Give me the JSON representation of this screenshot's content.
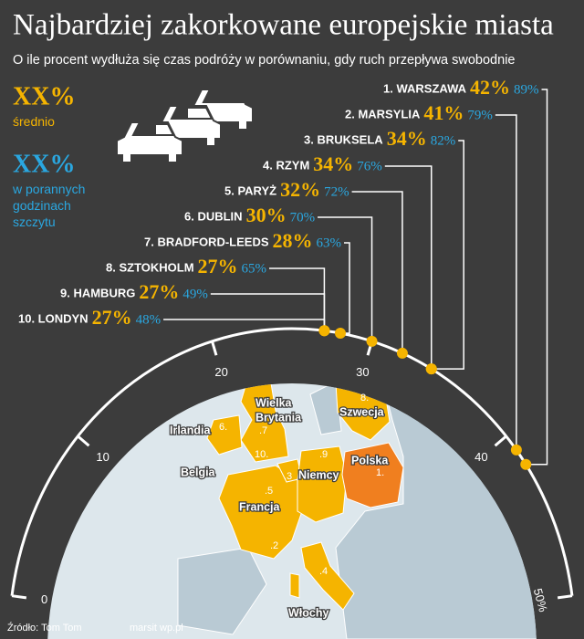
{
  "chart_data": {
    "type": "gauge",
    "title": "Najbardziej zakorkowane europejskie miasta",
    "subtitle": "O ile procent wydłuża się czas podróży w porównaniu, gdy ruch przepływa swobodnie",
    "categories": [
      "1. WARSZAWA",
      "2. MARSYLIA",
      "3. BRUKSELA",
      "4. RZYM",
      "5. PARYŻ",
      "6. DUBLIN",
      "7. BRADFORD-LEEDS",
      "8. SZTOKHOLM",
      "9. HAMBURG",
      "10. LONDYN"
    ],
    "series": [
      {
        "name": "średnio",
        "color": "#f5b400",
        "values": [
          42,
          41,
          34,
          34,
          32,
          30,
          28,
          27,
          27,
          27
        ],
        "value_labels": [
          "42%",
          "41%",
          "34%",
          "34%",
          "32%",
          "30%",
          "28%",
          "27%",
          "27%",
          "27%"
        ]
      },
      {
        "name": "w porannych godzinach szczytu",
        "color": "#2aa7e0",
        "values": [
          89,
          79,
          82,
          76,
          72,
          70,
          63,
          65,
          49,
          48
        ],
        "value_labels": [
          "89%",
          "79%",
          "82%",
          "76%",
          "72%",
          "70%",
          "63%",
          "65%",
          "49%",
          "48%"
        ]
      }
    ],
    "legend_symbol": "XX%",
    "ylim": [
      0,
      50
    ],
    "yticks": [
      0,
      10,
      20,
      30,
      40,
      {
        "value": 50,
        "label": "50%"
      }
    ],
    "map": {
      "labels": [
        "Wielka",
        "Brytania",
        "Irlandia",
        "Belgia",
        "Francja",
        "Niemcy",
        "Polska",
        "Szwecja",
        "Włochy"
      ],
      "markers": [
        "1.",
        ".2",
        ".3",
        ".4",
        ".5",
        "6.",
        ".7",
        "8.",
        ".9",
        "10."
      ]
    },
    "source": "Źródło: Tom Tom",
    "credit": "marsit wp.pl"
  }
}
